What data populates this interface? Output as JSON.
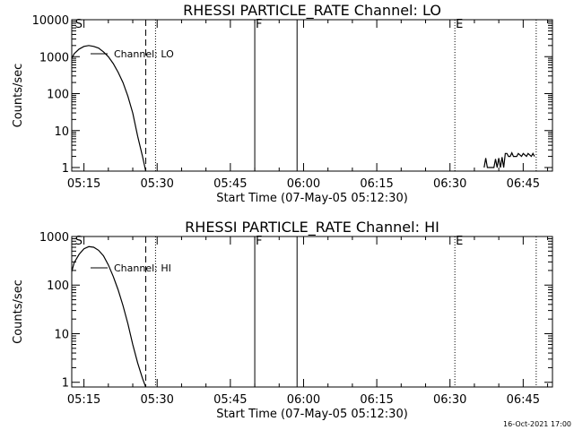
{
  "footer": {
    "timestamp": "16-Oct-2021 17:00"
  },
  "chart_data": [
    {
      "type": "line",
      "title": "RHESSI PARTICLE_RATE Channel: LO",
      "xlabel": "Start Time (07-May-05 05:12:30)",
      "ylabel": "Counts/sec",
      "y_scale": "log",
      "xlim": [
        "05:12:30",
        "06:51:00"
      ],
      "ylim": [
        0.8,
        10000
      ],
      "x_ticks": [
        "05:15",
        "05:30",
        "05:45",
        "06:00",
        "06:15",
        "06:30",
        "06:45"
      ],
      "y_ticks": [
        {
          "value": 1,
          "label": "1"
        },
        {
          "value": 10,
          "label": "10"
        },
        {
          "value": 100,
          "label": "100"
        },
        {
          "value": 1000,
          "label": "1000"
        },
        {
          "value": 10000,
          "label": "10000"
        }
      ],
      "grid": false,
      "legend": "upper-left",
      "series": [
        {
          "name": "Channel: LO",
          "x": [
            "05:12:30",
            "05:13:00",
            "05:14:00",
            "05:15:00",
            "05:16:00",
            "05:17:00",
            "05:18:00",
            "05:19:00",
            "05:20:00",
            "05:21:00",
            "05:22:00",
            "05:23:00",
            "05:24:00",
            "05:25:00",
            "05:26:00",
            "05:27:00",
            "05:27:40"
          ],
          "y": [
            900,
            1200,
            1600,
            1900,
            2000,
            1900,
            1700,
            1350,
            1000,
            650,
            380,
            200,
            85,
            30,
            7,
            2,
            0.8
          ]
        },
        {
          "name": "",
          "x": [
            "06:37:00",
            "06:37:20",
            "06:37:40",
            "06:38:00",
            "06:39:00",
            "06:39:20",
            "06:39:40",
            "06:40:00",
            "06:40:20",
            "06:40:40",
            "06:41:00",
            "06:41:20",
            "06:41:40",
            "06:42:00",
            "06:42:20",
            "06:42:40",
            "06:43:00",
            "06:43:40",
            "06:44:00",
            "06:44:40",
            "06:45:00",
            "06:45:40",
            "06:46:00",
            "06:46:40",
            "06:47:00",
            "06:47:20"
          ],
          "y": [
            1,
            1.8,
            1,
            1,
            1,
            1.7,
            1,
            1.8,
            1,
            1.9,
            1,
            2.4,
            2.4,
            2.0,
            2.0,
            2.5,
            2.0,
            2.0,
            2.4,
            2.0,
            2.4,
            2.0,
            2.4,
            2.0,
            2.4,
            2.0
          ]
        }
      ],
      "annotations": [
        {
          "label": "S",
          "time": "05:13:00",
          "style": "label"
        },
        {
          "label": "",
          "time": "05:27:40",
          "style": "dashed"
        },
        {
          "label": "",
          "time": "05:29:40",
          "style": "dotted"
        },
        {
          "label": "F",
          "time": "05:50:00",
          "style": "solid"
        },
        {
          "label": "",
          "time": "05:58:40",
          "style": "solid"
        },
        {
          "label": "E",
          "time": "06:31:00",
          "style": "dotted"
        },
        {
          "label": "",
          "time": "06:47:40",
          "style": "dotted"
        }
      ]
    },
    {
      "type": "line",
      "title": "RHESSI PARTICLE_RATE Channel: HI",
      "xlabel": "Start Time (07-May-05 05:12:30)",
      "ylabel": "Counts/sec",
      "y_scale": "log",
      "xlim": [
        "05:12:30",
        "06:51:00"
      ],
      "ylim": [
        0.8,
        1000
      ],
      "x_ticks": [
        "05:15",
        "05:30",
        "05:45",
        "06:00",
        "06:15",
        "06:30",
        "06:45"
      ],
      "y_ticks": [
        {
          "value": 1,
          "label": "1"
        },
        {
          "value": 10,
          "label": "10"
        },
        {
          "value": 100,
          "label": "100"
        },
        {
          "value": 1000,
          "label": "1000"
        }
      ],
      "grid": false,
      "legend": "upper-left",
      "series": [
        {
          "name": "Channel: HI",
          "x": [
            "05:12:30",
            "05:13:00",
            "05:14:00",
            "05:15:00",
            "05:16:00",
            "05:17:00",
            "05:18:00",
            "05:19:00",
            "05:20:00",
            "05:21:00",
            "05:22:00",
            "05:23:00",
            "05:24:00",
            "05:25:00",
            "05:26:00",
            "05:27:00",
            "05:27:40"
          ],
          "y": [
            190,
            290,
            430,
            560,
            620,
            600,
            520,
            400,
            260,
            150,
            80,
            38,
            16,
            6,
            2.5,
            1.2,
            0.8
          ]
        }
      ],
      "annotations": [
        {
          "label": "S",
          "time": "05:13:00",
          "style": "label"
        },
        {
          "label": "",
          "time": "05:27:40",
          "style": "dashed"
        },
        {
          "label": "",
          "time": "05:29:40",
          "style": "dotted"
        },
        {
          "label": "F",
          "time": "05:50:00",
          "style": "solid"
        },
        {
          "label": "",
          "time": "05:58:40",
          "style": "solid"
        },
        {
          "label": "E",
          "time": "06:31:00",
          "style": "dotted"
        },
        {
          "label": "",
          "time": "06:47:40",
          "style": "dotted"
        }
      ]
    }
  ]
}
